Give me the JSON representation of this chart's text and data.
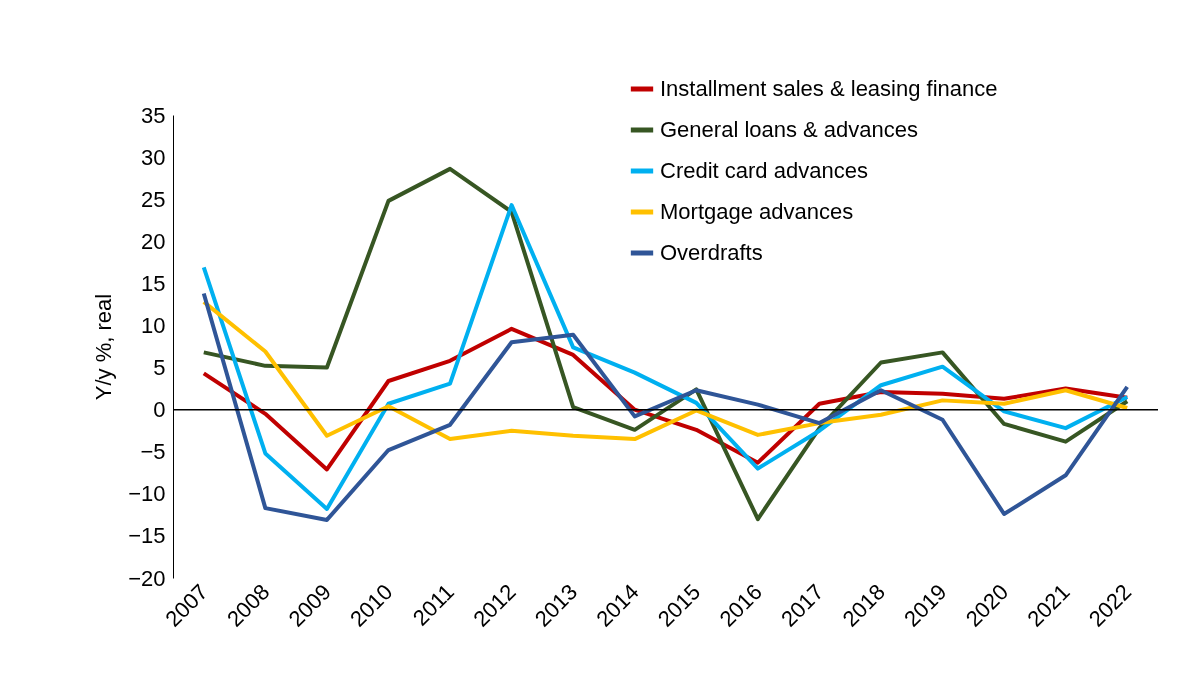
{
  "chart_data": {
    "type": "line",
    "ylabel": "Y/y %, real",
    "categories": [
      "2007",
      "2008",
      "2009",
      "2010",
      "2011",
      "2012",
      "2013",
      "2014",
      "2015",
      "2016",
      "2017",
      "2018",
      "2019",
      "2020",
      "2021",
      "2022"
    ],
    "series": [
      {
        "name": "Installment sales & leasing finance",
        "color": "#c00000",
        "values": [
          4.3,
          -0.5,
          -7.1,
          3.4,
          5.8,
          9.6,
          6.5,
          0,
          -2.4,
          -6.3,
          0.7,
          2.1,
          1.9,
          1.3,
          2.5,
          1.4
        ]
      },
      {
        "name": "General loans & advances",
        "color": "#375623",
        "values": [
          6.8,
          5.2,
          5,
          24.8,
          28.6,
          23.5,
          0.3,
          -2.4,
          2.4,
          -13,
          -2.2,
          5.6,
          6.8,
          -1.7,
          -3.8,
          1
        ]
      },
      {
        "name": "Credit card advances",
        "color": "#00b0f0",
        "values": [
          16.9,
          -5.2,
          -11.8,
          0.7,
          3.1,
          24.3,
          7.4,
          4.4,
          0.8,
          -7,
          -2.5,
          2.9,
          5.1,
          -0.2,
          -2.2,
          1.5
        ]
      },
      {
        "name": "Mortgage advances",
        "color": "#ffc000",
        "values": [
          12.8,
          6.9,
          -3.1,
          0.4,
          -3.5,
          -2.5,
          -3.1,
          -3.5,
          -0.1,
          -3,
          -1.6,
          -0.6,
          1.1,
          0.7,
          2.3,
          0.2
        ]
      },
      {
        "name": "Overdrafts",
        "color": "#2f5597",
        "values": [
          13.8,
          -11.7,
          -13.1,
          -4.8,
          -1.8,
          8,
          8.9,
          -0.8,
          2.3,
          0.6,
          -1.6,
          2.3,
          -1.2,
          -12.4,
          -7.8,
          2.7
        ]
      }
    ],
    "ylim": [
      -20,
      35
    ],
    "yticks": [
      -20,
      -15,
      -10,
      -5,
      0,
      5,
      10,
      15,
      20,
      25,
      30,
      35
    ],
    "ref_lines": [
      {
        "axis": "y",
        "value": 0,
        "color": "#000000"
      }
    ],
    "grid": false,
    "legend": "top right",
    "marker": "none",
    "line_style": "solid"
  }
}
